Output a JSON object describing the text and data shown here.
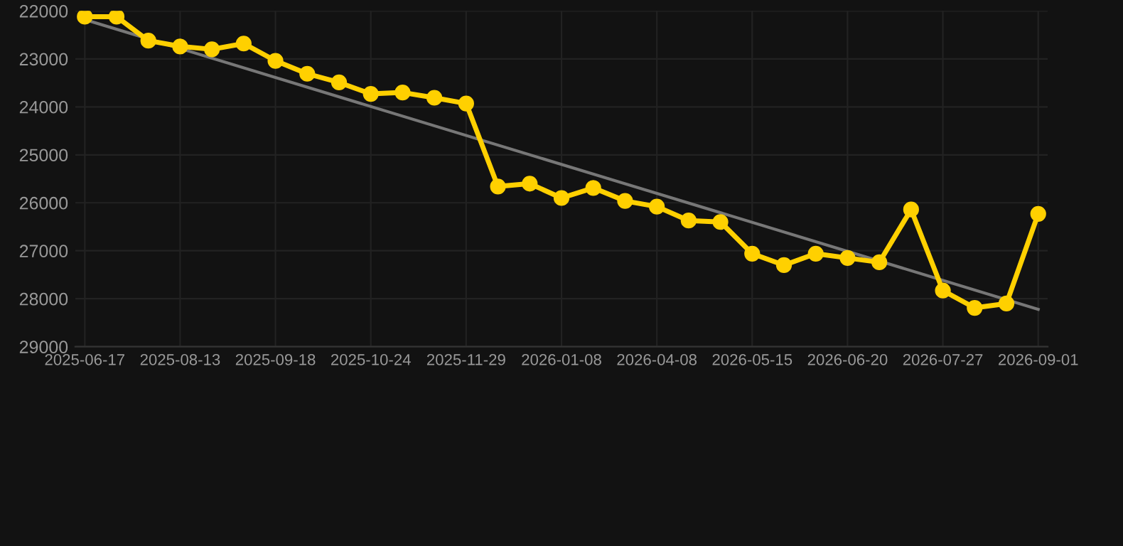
{
  "chart_data": {
    "type": "line",
    "categories": [
      "2025-06-17",
      null,
      null,
      "2025-08-13",
      null,
      null,
      "2025-09-18",
      null,
      null,
      "2025-10-24",
      null,
      null,
      "2025-11-29",
      null,
      null,
      "2026-01-08",
      null,
      null,
      "2026-04-08",
      null,
      null,
      "2026-05-15",
      null,
      null,
      "2026-06-20",
      null,
      null,
      "2026-07-27",
      null,
      null,
      "2026-09-01"
    ],
    "series": [
      {
        "color": "#ffd000",
        "marker": "circle",
        "values": [
          22120,
          22120,
          22620,
          22740,
          22800,
          22680,
          23040,
          23310,
          23490,
          23730,
          23700,
          23810,
          23930,
          25660,
          25600,
          25900,
          25690,
          25960,
          26080,
          26370,
          26400,
          27060,
          27300,
          27060,
          27150,
          27240,
          26140,
          27830,
          28190,
          28100,
          26230
        ]
      },
      {
        "color": "#777777",
        "marker": "none",
        "values": [
          22180,
          null,
          null,
          null,
          null,
          null,
          null,
          null,
          null,
          null,
          null,
          null,
          null,
          null,
          null,
          null,
          null,
          null,
          null,
          null,
          null,
          null,
          null,
          null,
          null,
          null,
          null,
          null,
          null,
          null,
          28220
        ]
      }
    ],
    "ylim": [
      29000,
      22000
    ],
    "yticks": [
      22000,
      23000,
      24000,
      25000,
      26000,
      27000,
      28000,
      29000
    ],
    "grid": true
  }
}
